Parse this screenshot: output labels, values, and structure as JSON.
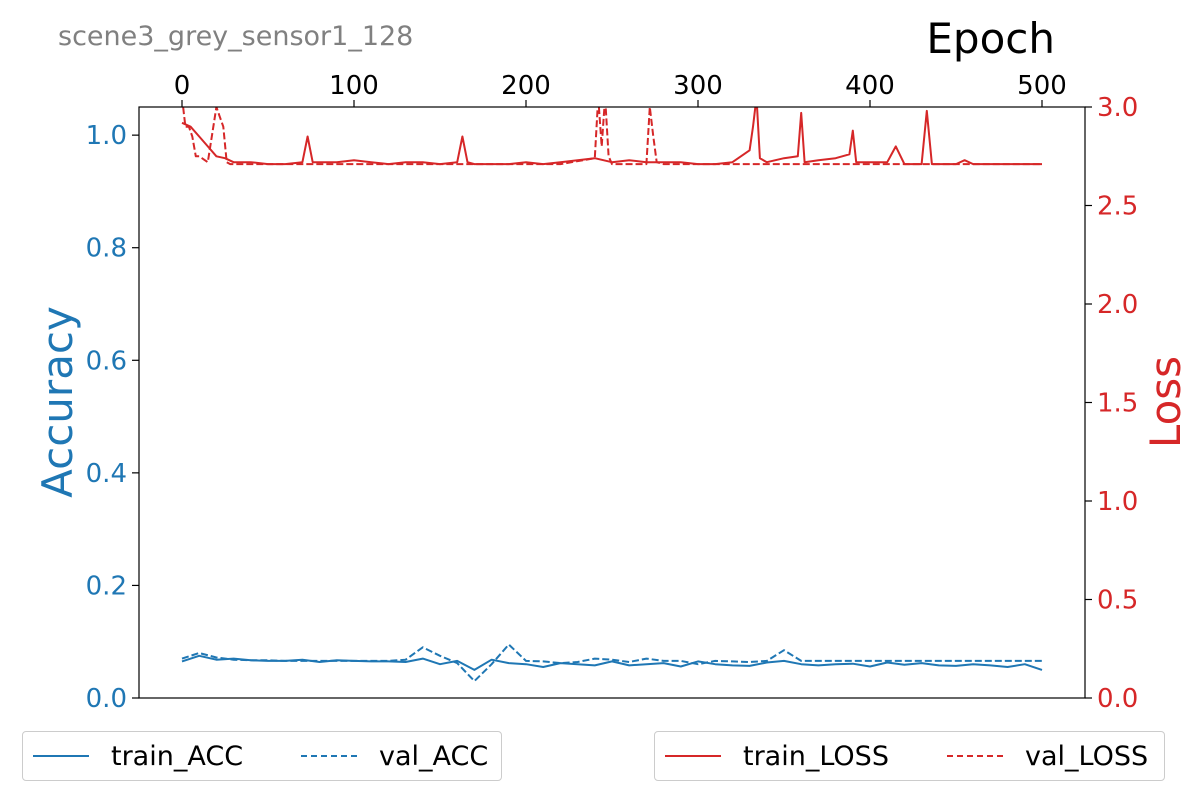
{
  "chart_data": {
    "type": "line",
    "title": "scene3_grey_sensor1_128",
    "xlabel": "Epoch",
    "ylabel_left": "Accuracy",
    "ylabel_right": "Loss",
    "xlim": [
      -25,
      525
    ],
    "ylim_left": [
      0.0,
      1.05
    ],
    "ylim_right": [
      0.0,
      3.0
    ],
    "xticks": [
      0,
      100,
      200,
      300,
      400,
      500
    ],
    "xtick_labels": [
      "0",
      "100",
      "200",
      "300",
      "400",
      "500"
    ],
    "yticks_left": [
      0.0,
      0.2,
      0.4,
      0.6,
      0.8,
      1.0
    ],
    "yticks_left_labels": [
      "0.0",
      "0.2",
      "0.4",
      "0.6",
      "0.8",
      "1.0"
    ],
    "yticks_right": [
      0.0,
      0.5,
      1.0,
      1.5,
      2.0,
      2.5,
      3.0
    ],
    "yticks_right_labels": [
      "0.0",
      "0.5",
      "1.0",
      "1.5",
      "2.0",
      "2.5",
      "3.0"
    ],
    "colors": {
      "acc": "#1f77b4",
      "loss": "#d62728",
      "title": "#808080"
    },
    "series": [
      {
        "name": "train_ACC",
        "axis": "left",
        "style": "solid",
        "color": "#1f77b4",
        "x": [
          0,
          10,
          20,
          30,
          40,
          50,
          60,
          70,
          80,
          90,
          100,
          110,
          120,
          130,
          140,
          150,
          160,
          170,
          180,
          190,
          200,
          210,
          220,
          230,
          240,
          250,
          260,
          270,
          280,
          290,
          300,
          310,
          320,
          330,
          340,
          350,
          360,
          370,
          380,
          390,
          400,
          410,
          420,
          430,
          440,
          450,
          460,
          470,
          480,
          490,
          500
        ],
        "y": [
          0.065,
          0.075,
          0.068,
          0.07,
          0.067,
          0.066,
          0.066,
          0.068,
          0.064,
          0.067,
          0.066,
          0.065,
          0.065,
          0.064,
          0.07,
          0.06,
          0.066,
          0.05,
          0.068,
          0.062,
          0.06,
          0.055,
          0.062,
          0.06,
          0.058,
          0.065,
          0.058,
          0.06,
          0.062,
          0.056,
          0.065,
          0.06,
          0.058,
          0.057,
          0.063,
          0.066,
          0.06,
          0.058,
          0.06,
          0.061,
          0.056,
          0.063,
          0.059,
          0.062,
          0.058,
          0.057,
          0.06,
          0.058,
          0.055,
          0.06,
          0.05
        ]
      },
      {
        "name": "val_ACC",
        "axis": "left",
        "style": "dashed",
        "color": "#1f77b4",
        "x": [
          0,
          10,
          20,
          30,
          40,
          50,
          60,
          70,
          80,
          90,
          100,
          110,
          120,
          130,
          140,
          150,
          160,
          170,
          180,
          190,
          200,
          210,
          220,
          230,
          240,
          250,
          260,
          270,
          280,
          290,
          300,
          310,
          320,
          330,
          340,
          350,
          360,
          370,
          380,
          390,
          400,
          410,
          420,
          430,
          440,
          450,
          460,
          470,
          480,
          490,
          500
        ],
        "y": [
          0.07,
          0.08,
          0.072,
          0.068,
          0.067,
          0.067,
          0.066,
          0.066,
          0.066,
          0.066,
          0.066,
          0.066,
          0.066,
          0.068,
          0.09,
          0.075,
          0.062,
          0.03,
          0.06,
          0.095,
          0.066,
          0.065,
          0.062,
          0.064,
          0.07,
          0.068,
          0.064,
          0.07,
          0.066,
          0.066,
          0.06,
          0.066,
          0.065,
          0.064,
          0.066,
          0.085,
          0.066,
          0.066,
          0.066,
          0.066,
          0.066,
          0.066,
          0.066,
          0.066,
          0.066,
          0.066,
          0.066,
          0.066,
          0.066,
          0.066,
          0.066
        ]
      },
      {
        "name": "train_LOSS",
        "axis": "right",
        "style": "solid",
        "color": "#d62728",
        "x": [
          0,
          5,
          10,
          15,
          20,
          25,
          30,
          40,
          50,
          60,
          70,
          73,
          76,
          80,
          90,
          100,
          110,
          120,
          130,
          140,
          150,
          160,
          163,
          166,
          170,
          180,
          190,
          200,
          210,
          220,
          230,
          240,
          250,
          260,
          270,
          280,
          290,
          300,
          310,
          320,
          330,
          332,
          334,
          336,
          340,
          350,
          358,
          360,
          362,
          370,
          380,
          388,
          390,
          392,
          400,
          410,
          415,
          420,
          430,
          433,
          436,
          440,
          450,
          455,
          460,
          470,
          480,
          490,
          500
        ],
        "y": [
          2.92,
          2.9,
          2.85,
          2.8,
          2.75,
          2.74,
          2.72,
          2.72,
          2.71,
          2.71,
          2.72,
          2.85,
          2.72,
          2.72,
          2.72,
          2.73,
          2.72,
          2.71,
          2.72,
          2.72,
          2.71,
          2.72,
          2.85,
          2.72,
          2.71,
          2.71,
          2.71,
          2.72,
          2.71,
          2.72,
          2.73,
          2.74,
          2.72,
          2.73,
          2.72,
          2.72,
          2.72,
          2.71,
          2.71,
          2.72,
          2.78,
          2.9,
          3.05,
          2.74,
          2.72,
          2.74,
          2.75,
          2.97,
          2.72,
          2.73,
          2.74,
          2.76,
          2.88,
          2.72,
          2.72,
          2.72,
          2.8,
          2.71,
          2.71,
          2.98,
          2.71,
          2.71,
          2.71,
          2.73,
          2.71,
          2.71,
          2.71,
          2.71,
          2.71
        ]
      },
      {
        "name": "val_LOSS",
        "axis": "right",
        "style": "dashed",
        "color": "#d62728",
        "x": [
          0,
          2,
          4,
          6,
          8,
          10,
          15,
          20,
          22,
          24,
          26,
          28,
          30,
          40,
          60,
          80,
          100,
          120,
          140,
          160,
          180,
          200,
          220,
          240,
          242,
          244,
          246,
          248,
          250,
          260,
          270,
          272,
          274,
          276,
          280,
          300,
          320,
          340,
          360,
          380,
          400,
          420,
          440,
          460,
          480,
          500
        ],
        "y": [
          3.05,
          2.9,
          2.9,
          2.85,
          2.75,
          2.75,
          2.72,
          3.0,
          2.95,
          2.9,
          2.72,
          2.71,
          2.71,
          2.71,
          2.71,
          2.71,
          2.71,
          2.71,
          2.71,
          2.71,
          2.71,
          2.71,
          2.71,
          2.74,
          3.05,
          2.8,
          3.05,
          2.75,
          2.71,
          2.71,
          2.71,
          3.0,
          2.85,
          2.72,
          2.71,
          2.71,
          2.71,
          2.71,
          2.71,
          2.71,
          2.71,
          2.71,
          2.71,
          2.71,
          2.71,
          2.71
        ]
      }
    ],
    "legends": [
      {
        "placement": "bottom-left",
        "entries": [
          "train_ACC",
          "val_ACC"
        ]
      },
      {
        "placement": "bottom-right",
        "entries": [
          "train_LOSS",
          "val_LOSS"
        ]
      }
    ]
  }
}
